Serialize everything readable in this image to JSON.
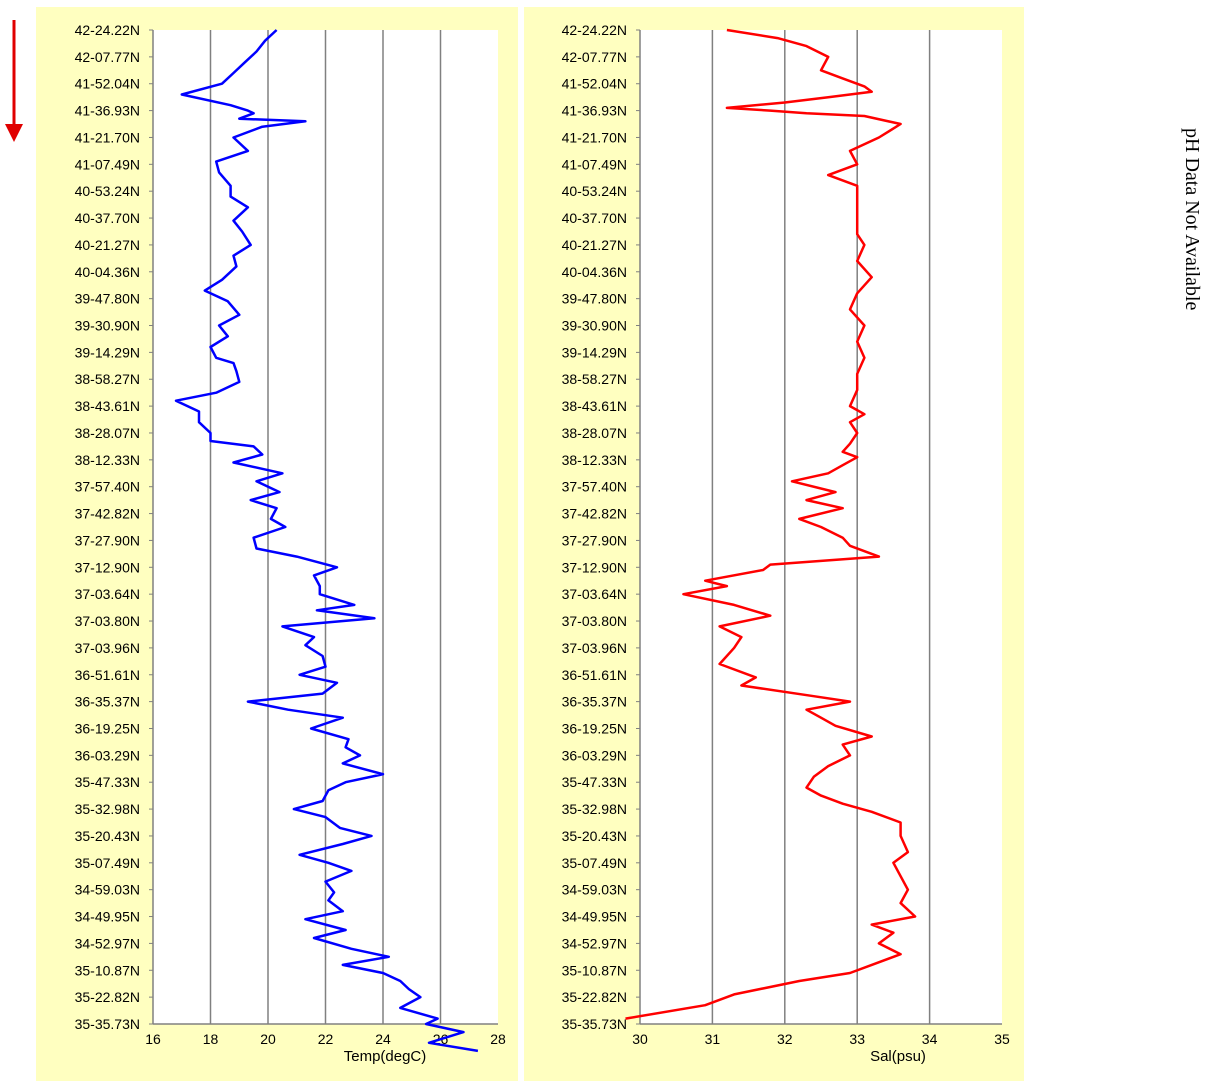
{
  "side_note": "pH Data Not Available",
  "colors": {
    "panel_bg": "#ffffc0",
    "grid": "#808080",
    "temp": "#0000ff",
    "sal": "#ff0000",
    "arrow": "#e00000"
  },
  "chart_data": [
    {
      "type": "line",
      "orientation": "vertical-profile",
      "xlabel": "Temp(degC)",
      "x_ticks": [
        "16",
        "18",
        "20",
        "22",
        "24",
        "26",
        "28"
      ],
      "xlim": [
        16,
        28
      ],
      "grid": "vertical",
      "y_ticks": [
        "42-24.22N",
        "42-07.77N",
        "41-52.04N",
        "41-36.93N",
        "41-21.70N",
        "41-07.49N",
        "40-53.24N",
        "40-37.70N",
        "40-21.27N",
        "40-04.36N",
        "39-47.80N",
        "39-30.90N",
        "39-14.29N",
        "38-58.27N",
        "38-43.61N",
        "38-28.07N",
        "38-12.33N",
        "37-57.40N",
        "37-42.82N",
        "37-27.90N",
        "37-12.90N",
        "37-03.64N",
        "37-03.80N",
        "37-03.96N",
        "36-51.61N",
        "36-35.37N",
        "36-19.25N",
        "36-03.29N",
        "35-47.33N",
        "35-32.98N",
        "35-20.43N",
        "35-07.49N",
        "34-59.03N",
        "34-49.95N",
        "34-52.97N",
        "35-10.87N",
        "35-22.82N",
        "35-35.73N"
      ],
      "series": [
        {
          "color": "#0000ff",
          "x": [
            20.3,
            19.9,
            19.6,
            19.2,
            18.8,
            18.4,
            17.0,
            18.7,
            19.3,
            19.5,
            19.0,
            21.3,
            19.8,
            18.8,
            19.3,
            18.2,
            18.3,
            18.7,
            18.7,
            19.3,
            18.8,
            19.1,
            19.4,
            18.8,
            18.9,
            18.4,
            17.8,
            18.6,
            19.0,
            18.3,
            18.6,
            18.0,
            18.2,
            18.8,
            18.9,
            19.0,
            18.2,
            16.8,
            17.6,
            17.6,
            18.0,
            18.0,
            19.5,
            19.8,
            18.8,
            20.5,
            19.6,
            20.4,
            19.4,
            20.3,
            20.1,
            20.6,
            19.5,
            19.6,
            21.0,
            22.4,
            21.6,
            21.8,
            21.8,
            23.0,
            21.7,
            23.7,
            20.5,
            21.6,
            21.3,
            21.9,
            22.0,
            21.1,
            22.4,
            21.9,
            19.3,
            20.7,
            22.6,
            21.5,
            22.8,
            22.7,
            23.2,
            22.6,
            24.0,
            22.7,
            22.1,
            21.9,
            20.9,
            22.0,
            22.5,
            23.6,
            22.6,
            21.1,
            22.1,
            22.9,
            22.0,
            22.3,
            22.1,
            22.6,
            21.3,
            22.7,
            21.6,
            22.9,
            24.2,
            22.6,
            24.0,
            24.6,
            24.9,
            25.3,
            24.6,
            25.9,
            25.5,
            26.8,
            25.6,
            27.3
          ],
          "y": [
            0.0,
            0.4,
            0.8,
            1.2,
            1.6,
            2.0,
            2.4,
            2.8,
            3.0,
            3.1,
            3.3,
            3.4,
            3.6,
            4.0,
            4.5,
            4.9,
            5.3,
            5.8,
            6.2,
            6.6,
            7.1,
            7.5,
            8.0,
            8.4,
            8.8,
            9.3,
            9.7,
            10.1,
            10.6,
            11.0,
            11.4,
            11.8,
            12.2,
            12.4,
            12.7,
            13.1,
            13.5,
            13.8,
            14.2,
            14.6,
            15.0,
            15.3,
            15.5,
            15.8,
            16.1,
            16.5,
            16.8,
            17.2,
            17.5,
            17.8,
            18.2,
            18.5,
            18.9,
            19.3,
            19.6,
            20.0,
            20.3,
            20.7,
            21.0,
            21.4,
            21.6,
            21.9,
            22.2,
            22.6,
            22.9,
            23.3,
            23.7,
            24.0,
            24.3,
            24.7,
            25.0,
            25.3,
            25.6,
            26.0,
            26.4,
            26.7,
            27.0,
            27.3,
            27.7,
            28.0,
            28.3,
            28.7,
            29.0,
            29.3,
            29.7,
            30.0,
            30.3,
            30.7,
            31.0,
            31.3,
            31.7,
            32.1,
            32.4,
            32.8,
            33.1,
            33.5,
            33.8,
            34.2,
            34.5,
            34.8,
            35.1,
            35.4,
            35.7,
            36.0,
            36.4,
            36.8,
            37.0,
            37.3,
            37.7,
            38.0
          ]
        }
      ]
    },
    {
      "type": "line",
      "orientation": "vertical-profile",
      "xlabel": "Sal(psu)",
      "x_ticks": [
        "30",
        "31",
        "32",
        "33",
        "34",
        "35"
      ],
      "xlim": [
        30,
        35
      ],
      "grid": "vertical",
      "y_ticks": [
        "42-24.22N",
        "42-07.77N",
        "41-52.04N",
        "41-36.93N",
        "41-21.70N",
        "41-07.49N",
        "40-53.24N",
        "40-37.70N",
        "40-21.27N",
        "40-04.36N",
        "39-47.80N",
        "39-30.90N",
        "39-14.29N",
        "38-58.27N",
        "38-43.61N",
        "38-28.07N",
        "38-12.33N",
        "37-57.40N",
        "37-42.82N",
        "37-27.90N",
        "37-12.90N",
        "37-03.64N",
        "37-03.80N",
        "37-03.96N",
        "36-51.61N",
        "36-35.37N",
        "36-19.25N",
        "36-03.29N",
        "35-47.33N",
        "35-32.98N",
        "35-20.43N",
        "35-07.49N",
        "34-59.03N",
        "34-49.95N",
        "34-52.97N",
        "35-10.87N",
        "35-22.82N",
        "35-35.73N"
      ],
      "series": [
        {
          "color": "#ff0000",
          "x": [
            31.2,
            31.9,
            32.3,
            32.6,
            32.5,
            32.8,
            33.1,
            33.2,
            32.6,
            32.0,
            31.2,
            31.8,
            32.3,
            33.1,
            33.6,
            33.3,
            32.9,
            33.0,
            32.6,
            33.0,
            33.0,
            33.0,
            33.0,
            33.1,
            33.0,
            33.2,
            33.0,
            32.9,
            33.1,
            33.0,
            33.1,
            33.0,
            33.0,
            32.9,
            33.1,
            32.9,
            33.0,
            32.9,
            32.8,
            33.0,
            32.8,
            32.6,
            32.1,
            32.7,
            32.3,
            32.8,
            32.2,
            32.5,
            32.8,
            32.9,
            33.3,
            31.8,
            31.7,
            30.9,
            31.2,
            30.6,
            31.3,
            31.8,
            31.1,
            31.4,
            31.3,
            31.1,
            31.6,
            31.4,
            32.4,
            32.9,
            32.3,
            32.5,
            32.7,
            33.2,
            32.8,
            32.9,
            32.6,
            32.4,
            32.3,
            32.5,
            32.8,
            33.2,
            33.6,
            33.6,
            33.7,
            33.5,
            33.6,
            33.7,
            33.6,
            33.8,
            33.2,
            33.5,
            33.3,
            33.6,
            33.2,
            32.9,
            32.2,
            31.3,
            30.9,
            29.8
          ],
          "y": [
            0.0,
            0.3,
            0.6,
            1.0,
            1.5,
            1.8,
            2.1,
            2.3,
            2.5,
            2.7,
            2.9,
            3.0,
            3.1,
            3.2,
            3.5,
            4.0,
            4.5,
            5.0,
            5.4,
            5.8,
            6.4,
            7.0,
            7.6,
            8.0,
            8.6,
            9.2,
            9.8,
            10.4,
            11.0,
            11.6,
            12.2,
            12.8,
            13.4,
            14.0,
            14.3,
            14.6,
            15.0,
            15.4,
            15.7,
            15.9,
            16.2,
            16.5,
            16.8,
            17.2,
            17.5,
            17.8,
            18.2,
            18.5,
            18.9,
            19.2,
            19.6,
            19.9,
            20.1,
            20.5,
            20.7,
            21.0,
            21.4,
            21.8,
            22.2,
            22.6,
            23.0,
            23.6,
            24.1,
            24.4,
            24.8,
            25.0,
            25.3,
            25.6,
            25.9,
            26.3,
            26.6,
            27.0,
            27.4,
            27.8,
            28.2,
            28.5,
            28.8,
            29.1,
            29.5,
            30.0,
            30.6,
            31.0,
            31.5,
            32.0,
            32.5,
            33.0,
            33.3,
            33.6,
            34.0,
            34.4,
            34.8,
            35.1,
            35.4,
            35.9,
            36.3,
            36.8
          ]
        }
      ]
    }
  ]
}
